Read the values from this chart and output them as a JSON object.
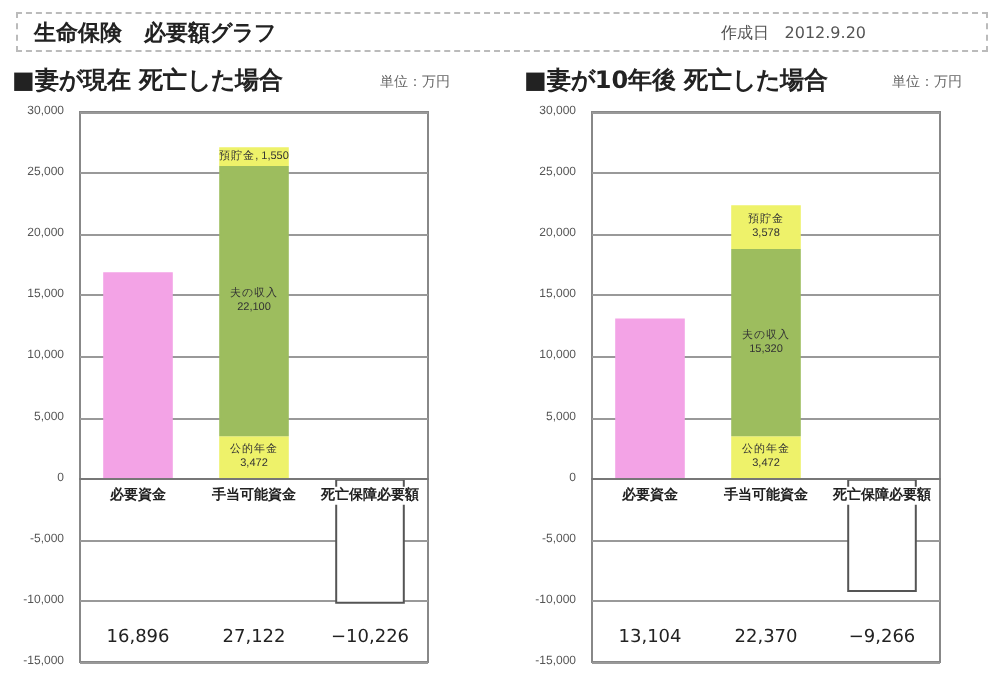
{
  "chart_data": [
    {
      "type": "bar",
      "title": "■妻が現在 死亡した場合",
      "stacked": true,
      "annotations": [
        "生命保険　必要額グラフ",
        "作成日　2012.9.20",
        "単位：万円",
        "16,896",
        "27,122",
        "−10,226"
      ],
      "categories": [
        "必要資金",
        "手当可能資金",
        "死亡保障必要額"
      ],
      "series": [
        {
          "color": "#f3a3e6",
          "values": [
            16896,
            null,
            null
          ]
        },
        {
          "color": "#eef26a",
          "values": [
            null,
            3472,
            null
          ],
          "value_labels": [
            null,
            "公的年金\n3,472",
            null
          ]
        },
        {
          "color": "#9dbd5e",
          "values": [
            null,
            22100,
            null
          ],
          "value_labels": [
            null,
            "夫の収入\n22,100",
            null
          ]
        },
        {
          "color": "#eef26a",
          "values": [
            null,
            1550,
            null
          ],
          "value_labels": [
            null,
            "預貯金, 1,550",
            null
          ]
        },
        {
          "color": "#ffffff",
          "values": [
            null,
            null,
            -10226
          ]
        }
      ],
      "ylim": [
        -15000,
        30000
      ],
      "yticks": [
        {
          "value": -15000,
          "label": "-15,000"
        },
        {
          "value": -10000,
          "label": "-10,000"
        },
        {
          "value": -5000,
          "label": "-5,000"
        },
        0,
        {
          "value": 5000,
          "label": "5,000"
        },
        {
          "value": 10000,
          "label": "10,000"
        },
        {
          "value": 15000,
          "label": "15,000"
        },
        {
          "value": 20000,
          "label": "20,000"
        },
        {
          "value": 25000,
          "label": "25,000"
        },
        {
          "value": 30000,
          "label": "30,000"
        }
      ],
      "grid": "y"
    },
    {
      "type": "bar",
      "title": "■妻が10年後 死亡した場合",
      "stacked": true,
      "annotations": [
        "単位：万円",
        "13,104",
        "22,370",
        "−9,266"
      ],
      "categories": [
        "必要資金",
        "手当可能資金",
        "死亡保障必要額"
      ],
      "series": [
        {
          "color": "#f3a3e6",
          "values": [
            13104,
            null,
            null
          ]
        },
        {
          "color": "#eef26a",
          "values": [
            null,
            3472,
            null
          ],
          "value_labels": [
            null,
            "公的年金\n3,472",
            null
          ]
        },
        {
          "color": "#9dbd5e",
          "values": [
            null,
            15320,
            null
          ],
          "value_labels": [
            null,
            "夫の収入\n15,320",
            null
          ]
        },
        {
          "color": "#eef26a",
          "values": [
            null,
            3578,
            null
          ],
          "value_labels": [
            null,
            "預貯金\n3,578",
            null
          ]
        },
        {
          "color": "#ffffff",
          "values": [
            null,
            null,
            -9266
          ]
        }
      ],
      "ylim": [
        -15000,
        30000
      ],
      "yticks": [
        {
          "value": -15000,
          "label": "-15,000"
        },
        {
          "value": -10000,
          "label": "-10,000"
        },
        {
          "value": -5000,
          "label": "-5,000"
        },
        0,
        {
          "value": 5000,
          "label": "5,000"
        },
        {
          "value": 10000,
          "label": "10,000"
        },
        {
          "value": 15000,
          "label": "15,000"
        },
        {
          "value": 20000,
          "label": "20,000"
        },
        {
          "value": 25000,
          "label": "25,000"
        },
        {
          "value": 30000,
          "label": "30,000"
        }
      ],
      "grid": "y"
    }
  ]
}
